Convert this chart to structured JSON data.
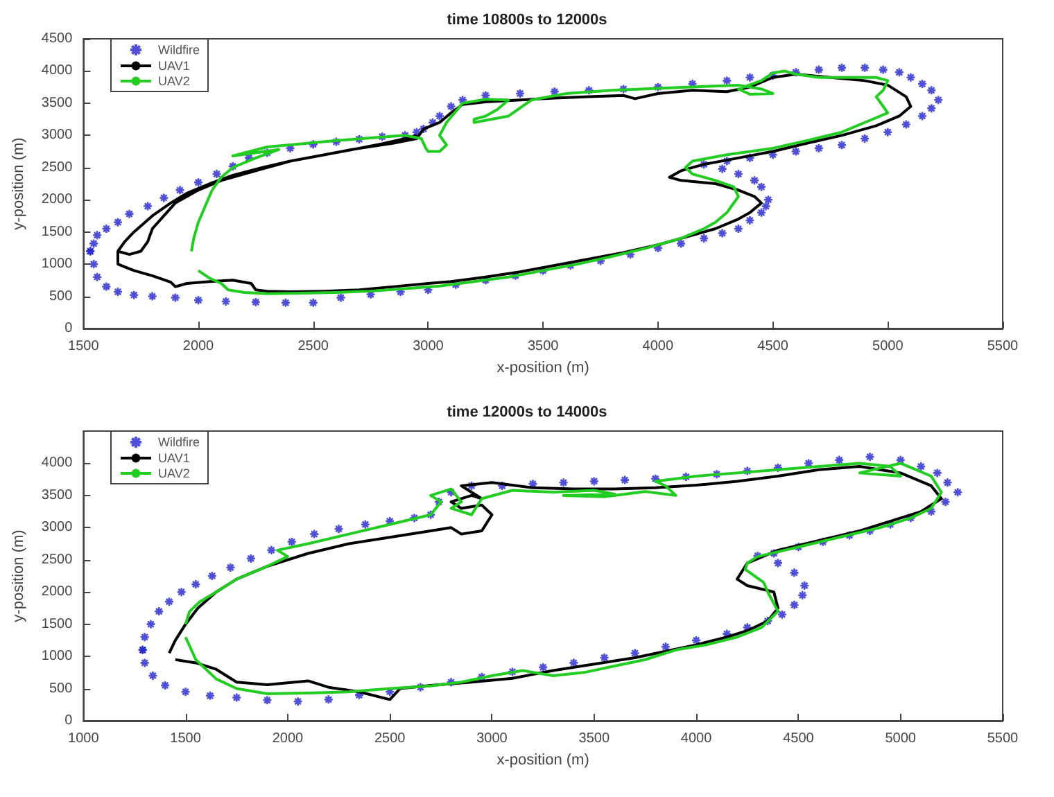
{
  "chart_data": [
    {
      "type": "line",
      "title": "time 10800s to 12000s",
      "xlabel": "x-position (m)",
      "ylabel": "y-position (m)",
      "xlim": [
        1500,
        5500
      ],
      "xticks": [
        1500,
        2000,
        2500,
        3000,
        3500,
        4000,
        4500,
        5000,
        5500
      ],
      "ylim": [
        0,
        4500
      ],
      "yticks": [
        0,
        500,
        1000,
        1500,
        2000,
        2500,
        3000,
        3500,
        4000,
        4500
      ],
      "grid": false,
      "legend": "top left",
      "series": [
        {
          "name": "Wildfire",
          "type": "scatter",
          "marker": "cross",
          "color": "#2222cc",
          "x": [
            1530,
            1545,
            1560,
            1600,
            1650,
            1700,
            1780,
            1850,
            1920,
            2000,
            2080,
            2150,
            2220,
            2300,
            2400,
            2500,
            2600,
            2700,
            2800,
            2900,
            2950,
            2980,
            3020,
            3050,
            3100,
            3150,
            3250,
            3400,
            3550,
            3700,
            3850,
            4000,
            4150,
            4300,
            4400,
            4500,
            4600,
            4700,
            4800,
            4900,
            4980,
            5050,
            5100,
            5150,
            5190,
            5220,
            5190,
            5150,
            5080,
            5000,
            4900,
            4800,
            4700,
            4600,
            4500,
            4400,
            4300,
            4200,
            4280,
            4350,
            4420,
            4450,
            4480,
            4470,
            4450,
            4400,
            4350,
            4280,
            4200,
            4100,
            4000,
            3880,
            3750,
            3620,
            3500,
            3380,
            3250,
            3120,
            3000,
            2880,
            2750,
            2620,
            2500,
            2380,
            2250,
            2120,
            2000,
            1900,
            1800,
            1720,
            1650,
            1600,
            1560,
            1545,
            1530
          ],
          "values": [
            1200,
            1320,
            1450,
            1550,
            1650,
            1780,
            1900,
            2030,
            2150,
            2270,
            2400,
            2520,
            2650,
            2730,
            2800,
            2860,
            2900,
            2940,
            2980,
            3000,
            3050,
            3100,
            3200,
            3300,
            3450,
            3550,
            3620,
            3650,
            3680,
            3700,
            3720,
            3750,
            3800,
            3850,
            3900,
            3930,
            3980,
            4020,
            4050,
            4050,
            4020,
            3980,
            3900,
            3800,
            3700,
            3550,
            3420,
            3300,
            3170,
            3050,
            2950,
            2850,
            2800,
            2750,
            2700,
            2650,
            2600,
            2550,
            2480,
            2400,
            2300,
            2200,
            2000,
            1900,
            1800,
            1680,
            1550,
            1480,
            1400,
            1320,
            1250,
            1150,
            1050,
            980,
            900,
            820,
            750,
            680,
            600,
            570,
            530,
            480,
            400,
            400,
            410,
            420,
            440,
            480,
            500,
            520,
            570,
            650,
            800,
            1000,
            1200
          ]
        },
        {
          "name": "UAV1",
          "color": "#000000",
          "x": [
            1650,
            1680,
            1720,
            1800,
            1880,
            1950,
            2050,
            2150,
            2280,
            2400,
            2550,
            2700,
            2850,
            2950,
            2980,
            3050,
            3100,
            3150,
            3250,
            3400,
            3550,
            3700,
            3850,
            3900,
            4000,
            4150,
            4300,
            4400,
            4500,
            4600,
            4750,
            4900,
            5000,
            5080,
            5100,
            5050,
            4950,
            4800,
            4650,
            4500,
            4350,
            4200,
            4100,
            4050,
            4100,
            4250,
            4350,
            4420,
            4450,
            4400,
            4350,
            4250,
            4150,
            4000,
            3850,
            3700,
            3550,
            3400,
            3250,
            3100,
            3000,
            2850,
            2700,
            2550,
            2400,
            2300,
            2250,
            2230,
            2150,
            2050,
            1950,
            1900,
            1880,
            1800,
            1720,
            1650,
            1650,
            1700,
            1750,
            1780,
            1800,
            1850,
            1900,
            2000,
            2100,
            2250,
            2400,
            2550,
            2700,
            2800,
            2900,
            2950
          ],
          "values": [
            1200,
            1350,
            1500,
            1750,
            1950,
            2100,
            2250,
            2380,
            2500,
            2600,
            2700,
            2800,
            2880,
            2950,
            3100,
            3200,
            3350,
            3480,
            3520,
            3550,
            3580,
            3600,
            3620,
            3570,
            3650,
            3700,
            3680,
            3750,
            3900,
            3950,
            3900,
            3850,
            3780,
            3600,
            3450,
            3300,
            3150,
            3000,
            2880,
            2750,
            2650,
            2550,
            2450,
            2350,
            2300,
            2250,
            2150,
            2050,
            1950,
            1800,
            1700,
            1550,
            1450,
            1300,
            1180,
            1080,
            980,
            880,
            800,
            730,
            700,
            650,
            600,
            580,
            570,
            580,
            600,
            700,
            750,
            730,
            700,
            650,
            720,
            820,
            900,
            1000,
            1200,
            1150,
            1200,
            1350,
            1550,
            1750,
            1950,
            2150,
            2300,
            2450,
            2600,
            2700,
            2800,
            2870,
            2950,
            3000
          ]
        },
        {
          "name": "UAV2",
          "color": "#22cc22",
          "x": [
            1970,
            1980,
            2000,
            2030,
            2060,
            2100,
            2150,
            2250,
            2350,
            2150,
            2300,
            2450,
            2600,
            2750,
            2900,
            2970,
            2990,
            3000,
            3050,
            3080,
            3050,
            3080,
            3150,
            3250,
            3350,
            3300,
            3250,
            3200,
            3200,
            3350,
            3450,
            3600,
            3800,
            4000,
            4200,
            4350,
            4450,
            4500,
            4400,
            4350,
            4450,
            4500,
            4550,
            4600,
            4700,
            4800,
            4950,
            5000,
            4980,
            4950,
            4980,
            5000,
            4900,
            4800,
            4650,
            4500,
            4300,
            4150,
            4120,
            4150,
            4250,
            4330,
            4350,
            4320,
            4300,
            4250,
            4200,
            4100,
            3950,
            3800,
            3650,
            3500,
            3350,
            3200,
            3050,
            2900,
            2750,
            2600,
            2450,
            2300,
            2200,
            2130,
            2100,
            2050,
            2000
          ],
          "values": [
            1200,
            1400,
            1650,
            1900,
            2150,
            2350,
            2500,
            2650,
            2780,
            2680,
            2820,
            2870,
            2920,
            2960,
            3000,
            2950,
            2800,
            2750,
            2750,
            2850,
            3000,
            3200,
            3500,
            3560,
            3550,
            3400,
            3300,
            3250,
            3200,
            3300,
            3550,
            3650,
            3700,
            3730,
            3760,
            3780,
            3720,
            3650,
            3640,
            3720,
            3850,
            3970,
            4000,
            3950,
            3900,
            3900,
            3900,
            3850,
            3700,
            3600,
            3450,
            3350,
            3200,
            3050,
            2920,
            2800,
            2700,
            2600,
            2500,
            2400,
            2300,
            2200,
            2050,
            1900,
            1800,
            1650,
            1550,
            1400,
            1250,
            1120,
            1000,
            900,
            800,
            730,
            660,
            620,
            580,
            560,
            550,
            540,
            560,
            600,
            700,
            780,
            900
          ]
        }
      ]
    },
    {
      "type": "line",
      "title": "time 12000s to 14000s",
      "xlabel": "x-position (m)",
      "ylabel": "y-position (m)",
      "xlim": [
        1000,
        5500
      ],
      "xticks": [
        1000,
        1500,
        2000,
        2500,
        3000,
        3500,
        4000,
        4500,
        5000,
        5500
      ],
      "ylim": [
        0,
        4500
      ],
      "yticks": [
        0,
        500,
        1000,
        1500,
        2000,
        2500,
        3000,
        3500,
        4000
      ],
      "grid": false,
      "legend": "top left",
      "series": [
        {
          "name": "Wildfire",
          "type": "scatter",
          "marker": "cross",
          "color": "#2222cc",
          "x": [
            1290,
            1300,
            1330,
            1370,
            1420,
            1480,
            1550,
            1630,
            1720,
            1820,
            1920,
            2020,
            2130,
            2250,
            2380,
            2500,
            2620,
            2700,
            2740,
            2800,
            2900,
            3050,
            3200,
            3350,
            3500,
            3650,
            3800,
            3950,
            4100,
            4250,
            4400,
            4550,
            4700,
            4850,
            5000,
            5100,
            5180,
            5230,
            5280,
            5220,
            5150,
            5050,
            4950,
            4850,
            4750,
            4620,
            4500,
            4380,
            4300,
            4400,
            4480,
            4530,
            4520,
            4480,
            4420,
            4350,
            4250,
            4150,
            4000,
            3850,
            3700,
            3550,
            3400,
            3250,
            3100,
            2950,
            2800,
            2650,
            2500,
            2350,
            2200,
            2050,
            1900,
            1750,
            1620,
            1500,
            1400,
            1340,
            1300,
            1290
          ],
          "values": [
            1100,
            1300,
            1500,
            1700,
            1850,
            2000,
            2120,
            2250,
            2380,
            2520,
            2650,
            2780,
            2900,
            2980,
            3050,
            3100,
            3150,
            3200,
            3400,
            3550,
            3650,
            3650,
            3680,
            3700,
            3720,
            3740,
            3760,
            3790,
            3830,
            3880,
            3930,
            4000,
            4050,
            4100,
            4050,
            3950,
            3850,
            3700,
            3550,
            3400,
            3250,
            3150,
            3050,
            2950,
            2880,
            2780,
            2700,
            2600,
            2560,
            2450,
            2300,
            2100,
            1950,
            1800,
            1650,
            1550,
            1450,
            1350,
            1250,
            1150,
            1050,
            980,
            900,
            830,
            760,
            680,
            600,
            520,
            450,
            400,
            330,
            300,
            320,
            360,
            390,
            450,
            550,
            700,
            900,
            1100
          ]
        },
        {
          "name": "UAV1",
          "color": "#000000",
          "x": [
            1420,
            1450,
            1500,
            1560,
            1650,
            1750,
            1900,
            2100,
            2300,
            2500,
            2700,
            2800,
            2850,
            2950,
            3000,
            2950,
            2850,
            2800,
            2900,
            2950,
            2850,
            3000,
            3200,
            3400,
            3600,
            3800,
            4000,
            4200,
            4400,
            4600,
            4800,
            5000,
            5150,
            5200,
            5100,
            4950,
            4800,
            4600,
            4400,
            4250,
            4200,
            4250,
            4380,
            4400,
            4350,
            4250,
            4150,
            4000,
            3850,
            3700,
            3500,
            3300,
            3100,
            2900,
            2700,
            2550,
            2500,
            2350,
            2200,
            2100,
            1900,
            1750,
            1650,
            1550,
            1450
          ],
          "values": [
            1050,
            1250,
            1500,
            1750,
            2000,
            2200,
            2400,
            2600,
            2750,
            2850,
            2950,
            3000,
            2900,
            2950,
            3200,
            3350,
            3300,
            3400,
            3500,
            3450,
            3650,
            3700,
            3620,
            3600,
            3600,
            3620,
            3660,
            3720,
            3800,
            3900,
            3950,
            3850,
            3650,
            3450,
            3250,
            3100,
            2950,
            2800,
            2650,
            2450,
            2200,
            2100,
            2000,
            1750,
            1550,
            1400,
            1300,
            1180,
            1080,
            980,
            880,
            780,
            660,
            600,
            550,
            500,
            330,
            450,
            520,
            620,
            560,
            600,
            800,
            900,
            950
          ]
        },
        {
          "name": "UAV2",
          "color": "#22cc22",
          "x": [
            1500,
            1520,
            1570,
            1650,
            1750,
            1900,
            2000,
            1950,
            2100,
            2300,
            2500,
            2700,
            2750,
            2700,
            2800,
            2850,
            2800,
            2900,
            2950,
            3100,
            3300,
            3500,
            3600,
            3350,
            3550,
            3750,
            3900,
            3850,
            3800,
            4000,
            4200,
            4400,
            4600,
            4800,
            4950,
            5000,
            4800,
            5000,
            5150,
            5200,
            5150,
            5050,
            4900,
            4700,
            4500,
            4300,
            4250,
            4240,
            4330,
            4350,
            4400,
            4320,
            4200,
            4050,
            3900,
            3750,
            3600,
            3450,
            3300,
            3150,
            3000,
            2850,
            2700,
            2500,
            2300,
            2100,
            1900,
            1750,
            1650,
            1550,
            1500
          ],
          "values": [
            1500,
            1700,
            1850,
            2000,
            2200,
            2400,
            2550,
            2650,
            2750,
            2900,
            3050,
            3200,
            3400,
            3500,
            3600,
            3400,
            3300,
            3200,
            3450,
            3580,
            3550,
            3580,
            3520,
            3500,
            3480,
            3560,
            3500,
            3650,
            3720,
            3800,
            3850,
            3900,
            3950,
            4000,
            3950,
            3800,
            3850,
            4000,
            3800,
            3550,
            3300,
            3150,
            3000,
            2850,
            2700,
            2550,
            2450,
            2350,
            2150,
            2000,
            1700,
            1450,
            1300,
            1180,
            1100,
            950,
            850,
            750,
            700,
            780,
            700,
            600,
            540,
            500,
            450,
            430,
            420,
            500,
            650,
            950,
            1300
          ]
        }
      ]
    }
  ]
}
